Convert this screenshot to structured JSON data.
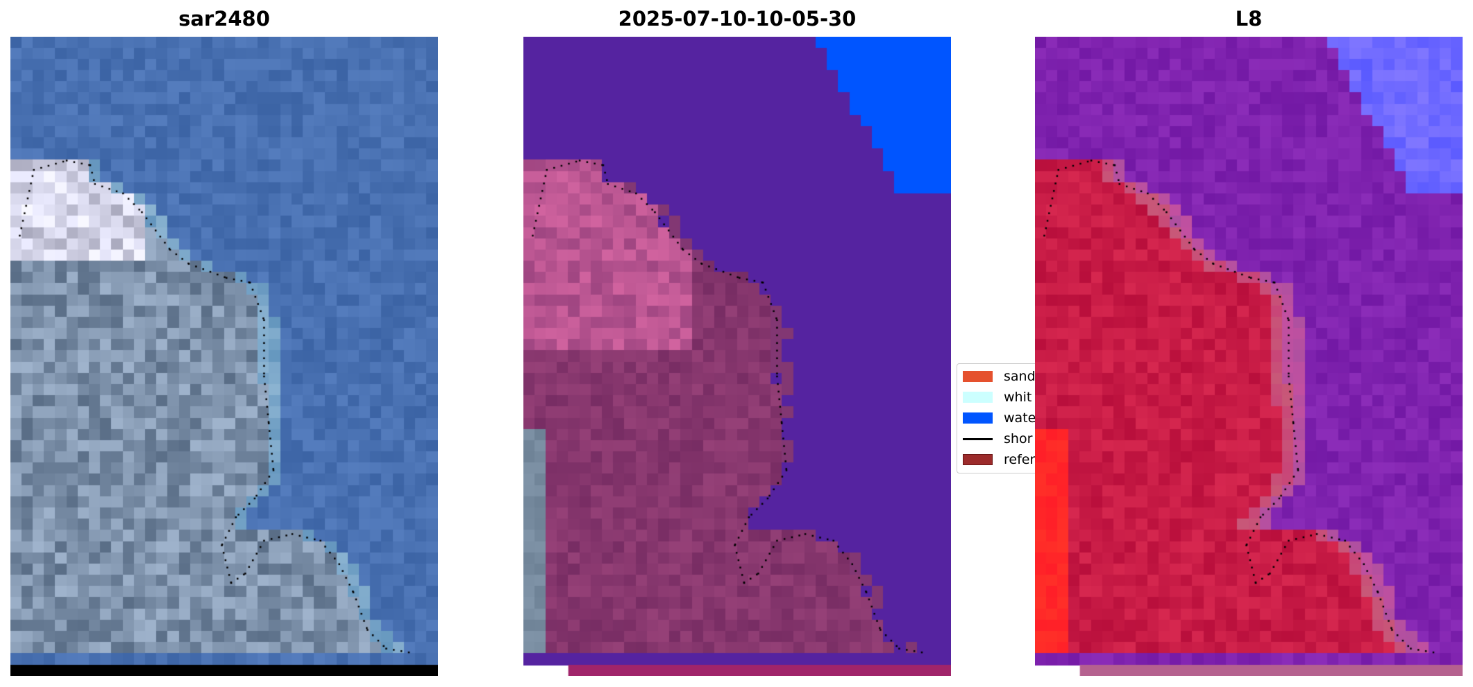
{
  "panels": [
    {
      "title": "sar2480"
    },
    {
      "title": "2025-07-10-10-05-30"
    },
    {
      "title": "L8"
    }
  ],
  "legend": {
    "items": [
      {
        "label": "sand",
        "color": "#e5512e",
        "type": "patch"
      },
      {
        "label": "whit",
        "color": "#ccffff",
        "type": "patch"
      },
      {
        "label": "wate",
        "color": "#0055ff",
        "type": "patch"
      },
      {
        "label": "shor",
        "color": "#000000",
        "type": "line"
      },
      {
        "label": "refer",
        "color": "#9c2b2b",
        "type": "patch"
      }
    ]
  },
  "colors": {
    "water_class": "#5523a0",
    "water_blue": "#0055ff",
    "land_class": "#8a3a74",
    "bottom_strip_2": "#a0246a",
    "bottom_strip_3": "#b5618f"
  }
}
